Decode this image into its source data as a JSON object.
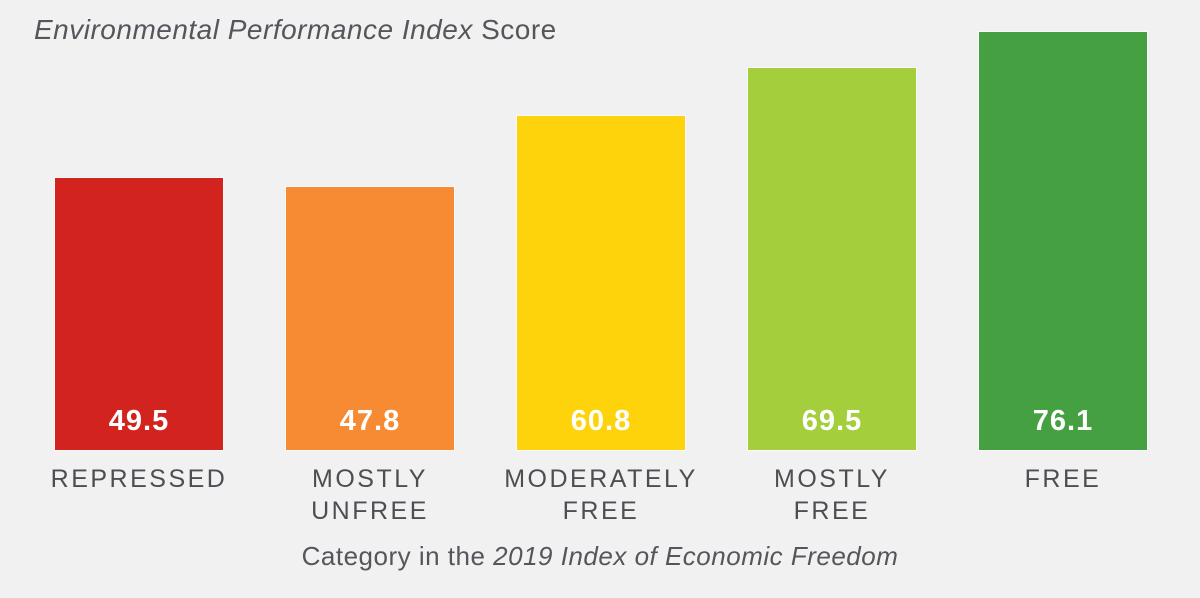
{
  "title": {
    "italic_part": "Environmental Performance Index",
    "regular_part": " Score"
  },
  "caption": {
    "regular_part": "Category in the ",
    "italic_part": "2019 Index of Economic Freedom"
  },
  "colors": {
    "background": "#F1F1F2",
    "text_dark": "#55565B",
    "label_text": "#4D4E53",
    "value_text": "#FFFFFF"
  },
  "chart_data": {
    "type": "bar",
    "title": "Environmental Performance Index Score",
    "xlabel": "Category in the 2019 Index of Economic Freedom",
    "ylabel": "Environmental Performance Index Score",
    "categories": [
      "REPRESSED",
      "MOSTLY UNFREE",
      "MODERATELY FREE",
      "MOSTLY FREE",
      "FREE"
    ],
    "values": [
      49.5,
      47.8,
      60.8,
      69.5,
      76.1
    ],
    "value_labels": [
      "49.5",
      "47.8",
      "60.8",
      "69.5",
      "76.1"
    ],
    "label_lines": [
      [
        "REPRESSED"
      ],
      [
        "MOSTLY",
        "UNFREE"
      ],
      [
        "MODERATELY",
        "FREE"
      ],
      [
        "MOSTLY",
        "FREE"
      ],
      [
        "FREE"
      ]
    ],
    "bar_colors": [
      "#D2231E",
      "#F68B33",
      "#FFD30B",
      "#A4CE3B",
      "#45A041"
    ],
    "ylim": [
      0,
      80
    ],
    "grid": false,
    "legend": null,
    "axes_visible": false,
    "value_label_position": "inside-bottom"
  }
}
